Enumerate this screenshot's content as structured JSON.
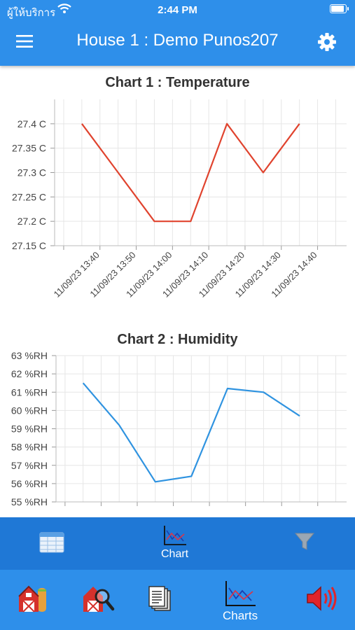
{
  "status_bar": {
    "carrier": "ผู้ให้บริการ",
    "time": "2:44 PM",
    "battery_level": 0.9
  },
  "header": {
    "title": "House 1 : Demo Punos207"
  },
  "chart_data": [
    {
      "type": "line",
      "title": "Chart 1 : Temperature",
      "x": [
        "13:35",
        "13:45",
        "13:55",
        "14:05",
        "14:15",
        "14:25",
        "14:35"
      ],
      "series": [
        {
          "values": [
            27.4,
            27.3,
            27.2,
            27.2,
            27.4,
            27.3,
            27.4
          ],
          "color": "#e0432e"
        }
      ],
      "x_ticks": [
        "11/09/23 13:40",
        "11/09/23 13:50",
        "11/09/23 14:00",
        "11/09/23 14:10",
        "11/09/23 14:20",
        "11/09/23 14:30",
        "11/09/23 14:40"
      ],
      "y_ticks": [
        "27.4 C",
        "27.35 C",
        "27.3 C",
        "27.25 C",
        "27.2 C",
        "27.15 C"
      ],
      "ylim": [
        27.15,
        27.45
      ],
      "grid": true
    },
    {
      "type": "line",
      "title": "Chart 2 : Humidity",
      "x": [
        "13:35",
        "13:45",
        "13:55",
        "14:05",
        "14:15",
        "14:25",
        "14:35"
      ],
      "series": [
        {
          "values": [
            61.5,
            59.2,
            56.1,
            56.4,
            61.2,
            61.0,
            59.7
          ],
          "color": "#2f93e0"
        }
      ],
      "y_ticks": [
        "63 %RH",
        "62 %RH",
        "61 %RH",
        "60 %RH",
        "59 %RH",
        "58 %RH",
        "57 %RH",
        "56 %RH",
        "55 %RH"
      ],
      "ylim": [
        55,
        63
      ],
      "grid": true
    }
  ],
  "tab_bar_top": [
    {
      "label": "",
      "icon": "table-icon"
    },
    {
      "label": "Chart",
      "icon": "chart-icon"
    },
    {
      "label": "",
      "icon": "filter-icon"
    }
  ],
  "tab_bar_bottom": [
    {
      "label": "",
      "icon": "barn-icon"
    },
    {
      "label": "",
      "icon": "barn-search-icon"
    },
    {
      "label": "",
      "icon": "documents-icon"
    },
    {
      "label": "Charts",
      "icon": "charts-icon"
    },
    {
      "label": "",
      "icon": "speaker-icon"
    }
  ],
  "colors": {
    "header": "#2e8fea",
    "tab_top": "#1f78d6",
    "tab_bottom": "#2e8fea",
    "temperature_line": "#e0432e",
    "humidity_line": "#2f93e0"
  }
}
